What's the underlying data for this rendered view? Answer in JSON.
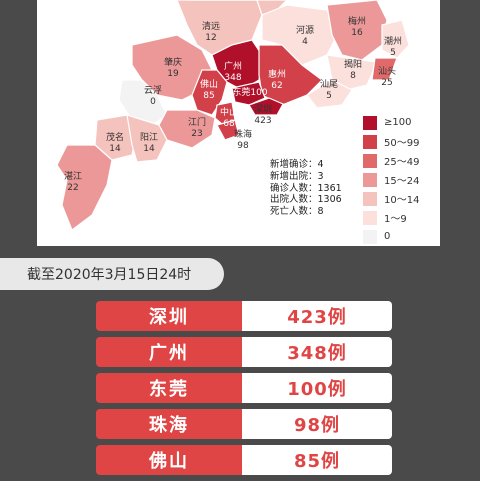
{
  "colors": {
    "bin_100plus": "#b0102a",
    "bin_50_99": "#d2404a",
    "bin_25_49": "#e06a6a",
    "bin_15_24": "#ec9898",
    "bin_10_14": "#f5c3bd",
    "bin_1_9": "#fbe0dc",
    "bin_0": "#f3f3f3",
    "accent": "#e04545"
  },
  "map": {
    "cities": [
      {
        "name": "清远",
        "value": "12",
        "bin": "bin_10_14"
      },
      {
        "name": "河源",
        "value": "4",
        "bin": "bin_1_9"
      },
      {
        "name": "梅州",
        "value": "16",
        "bin": "bin_15_24"
      },
      {
        "name": "潮州",
        "value": "5",
        "bin": "bin_1_9"
      },
      {
        "name": "肇庆",
        "value": "19",
        "bin": "bin_15_24"
      },
      {
        "name": "广州",
        "value": "348",
        "bin": "bin_100plus"
      },
      {
        "name": "惠州",
        "value": "62",
        "bin": "bin_50_99"
      },
      {
        "name": "揭阳",
        "value": "8",
        "bin": "bin_1_9"
      },
      {
        "name": "汕头",
        "value": "25",
        "bin": "bin_25_49"
      },
      {
        "name": "云浮",
        "value": "0",
        "bin": "bin_0"
      },
      {
        "name": "佛山",
        "value": "85",
        "bin": "bin_50_99"
      },
      {
        "name": "东莞",
        "value": "100",
        "bin": "bin_100plus"
      },
      {
        "name": "汕尾",
        "value": "5",
        "bin": "bin_1_9"
      },
      {
        "name": "中山",
        "value": "68",
        "bin": "bin_50_99"
      },
      {
        "name": "深圳",
        "value": "423",
        "bin": "bin_100plus"
      },
      {
        "name": "江门",
        "value": "23",
        "bin": "bin_15_24"
      },
      {
        "name": "珠海",
        "value": "98",
        "bin": "bin_50_99"
      },
      {
        "name": "茂名",
        "value": "14",
        "bin": "bin_10_14"
      },
      {
        "name": "阳江",
        "value": "14",
        "bin": "bin_10_14"
      },
      {
        "name": "湛江",
        "value": "22",
        "bin": "bin_15_24"
      }
    ],
    "legend": [
      {
        "label": "≥100",
        "bin": "bin_100plus"
      },
      {
        "label": "50～99",
        "bin": "bin_50_99"
      },
      {
        "label": "25～49",
        "bin": "bin_25_49"
      },
      {
        "label": "15～24",
        "bin": "bin_15_24"
      },
      {
        "label": "10～14",
        "bin": "bin_10_14"
      },
      {
        "label": "1～9",
        "bin": "bin_1_9"
      },
      {
        "label": "0",
        "bin": "bin_0"
      }
    ],
    "stats": [
      {
        "label": "新增确诊：",
        "value": "4"
      },
      {
        "label": "新增出院：",
        "value": "3"
      },
      {
        "label": "确诊人数：",
        "value": "1361"
      },
      {
        "label": "出院人数：",
        "value": "1306"
      },
      {
        "label": "死亡人数：",
        "value": "8"
      }
    ]
  },
  "date_banner": "截至2020年3月15日24时",
  "ranking": [
    {
      "city": "深圳",
      "value": "423例"
    },
    {
      "city": "广州",
      "value": "348例"
    },
    {
      "city": "东莞",
      "value": "100例"
    },
    {
      "city": "珠海",
      "value": "98例"
    },
    {
      "city": "佛山",
      "value": "85例"
    }
  ]
}
